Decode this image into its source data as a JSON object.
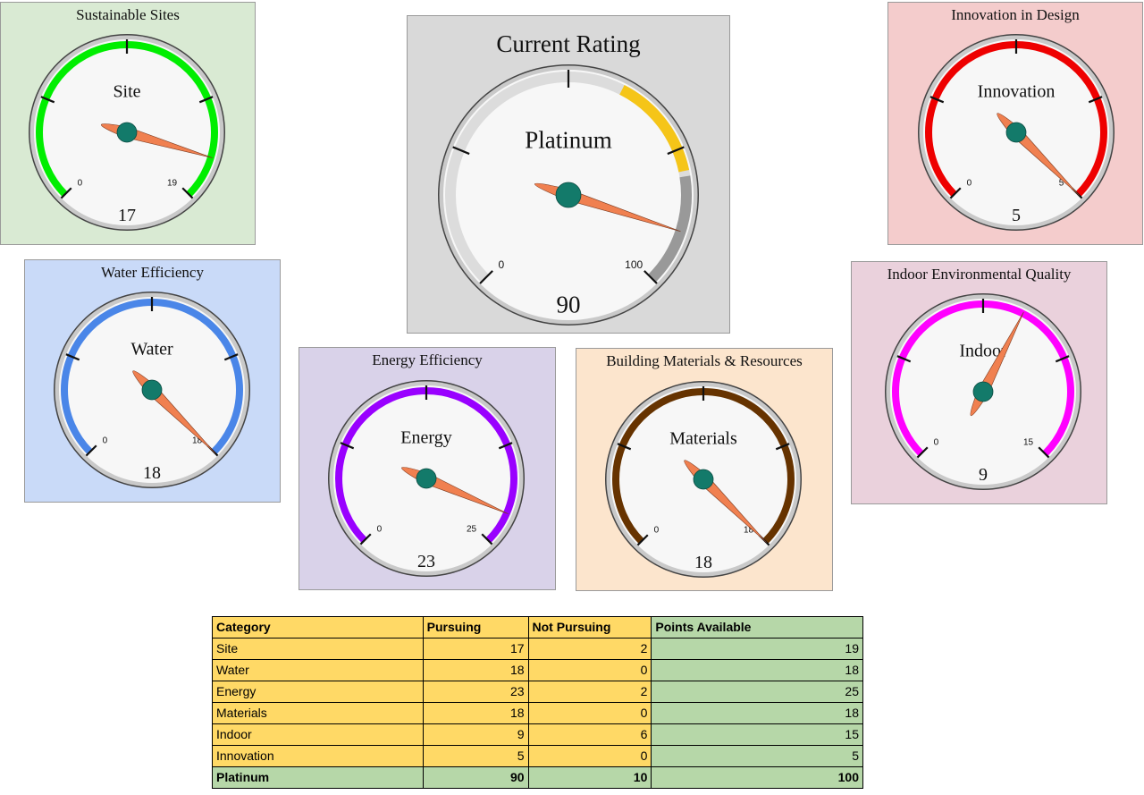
{
  "chart_data": {
    "type": "gauge",
    "gauges": [
      {
        "id": "site",
        "title": "Sustainable Sites",
        "label": "Site",
        "value": 17,
        "min": 0,
        "max": 19,
        "min_label": "0",
        "max_label": "19",
        "band_color": "#00ee00",
        "panel_color": "#d9ead3"
      },
      {
        "id": "current",
        "title": "Current Rating",
        "label": "Platinum",
        "value": 90,
        "min": 0,
        "max": 100,
        "min_label": "0",
        "max_label": "100",
        "panel_color": "#d9d9d9",
        "bands": [
          {
            "from": 60,
            "to": 79,
            "color": "#f5c518"
          },
          {
            "from": 80,
            "to": 100,
            "color": "#999999"
          }
        ]
      },
      {
        "id": "innovation",
        "title": "Innovation in Design",
        "label": "Innovation",
        "value": 5,
        "min": 0,
        "max": 5,
        "min_label": "0",
        "max_label": "5",
        "band_color": "#ee0000",
        "panel_color": "#f4cccc"
      },
      {
        "id": "water",
        "title": "Water Efficiency",
        "label": "Water",
        "value": 18,
        "min": 0,
        "max": 18,
        "min_label": "0",
        "max_label": "18",
        "band_color": "#4a86e8",
        "panel_color": "#c9daf8"
      },
      {
        "id": "energy",
        "title": "Energy Efficiency",
        "label": "Energy",
        "value": 23,
        "min": 0,
        "max": 25,
        "min_label": "0",
        "max_label": "25",
        "band_color": "#9900ff",
        "panel_color": "#d9d2e9"
      },
      {
        "id": "materials",
        "title": "Building Materials & Resources",
        "label": "Materials",
        "value": 18,
        "min": 0,
        "max": 18,
        "min_label": "0",
        "max_label": "18",
        "band_color": "#663300",
        "panel_color": "#fce5cd"
      },
      {
        "id": "indoor",
        "title": "Indoor Environmental Quality",
        "label": "Indoor",
        "value": 9,
        "min": 0,
        "max": 15,
        "min_label": "0",
        "max_label": "15",
        "band_color": "#ff00ff",
        "panel_color": "#ead1dc"
      }
    ],
    "table": {
      "headers": [
        "Category",
        "Pursuing",
        "Not Pursuing",
        "Points Available"
      ],
      "rows": [
        [
          "Site",
          17,
          2,
          19
        ],
        [
          "Water",
          18,
          0,
          18
        ],
        [
          "Energy",
          23,
          2,
          25
        ],
        [
          "Materials",
          18,
          0,
          18
        ],
        [
          "Indoor",
          9,
          6,
          15
        ],
        [
          "Innovation",
          5,
          0,
          5
        ],
        [
          "Platinum",
          90,
          10,
          100
        ]
      ]
    },
    "needle_color": "#f08050",
    "hub_color": "#137a6a"
  }
}
